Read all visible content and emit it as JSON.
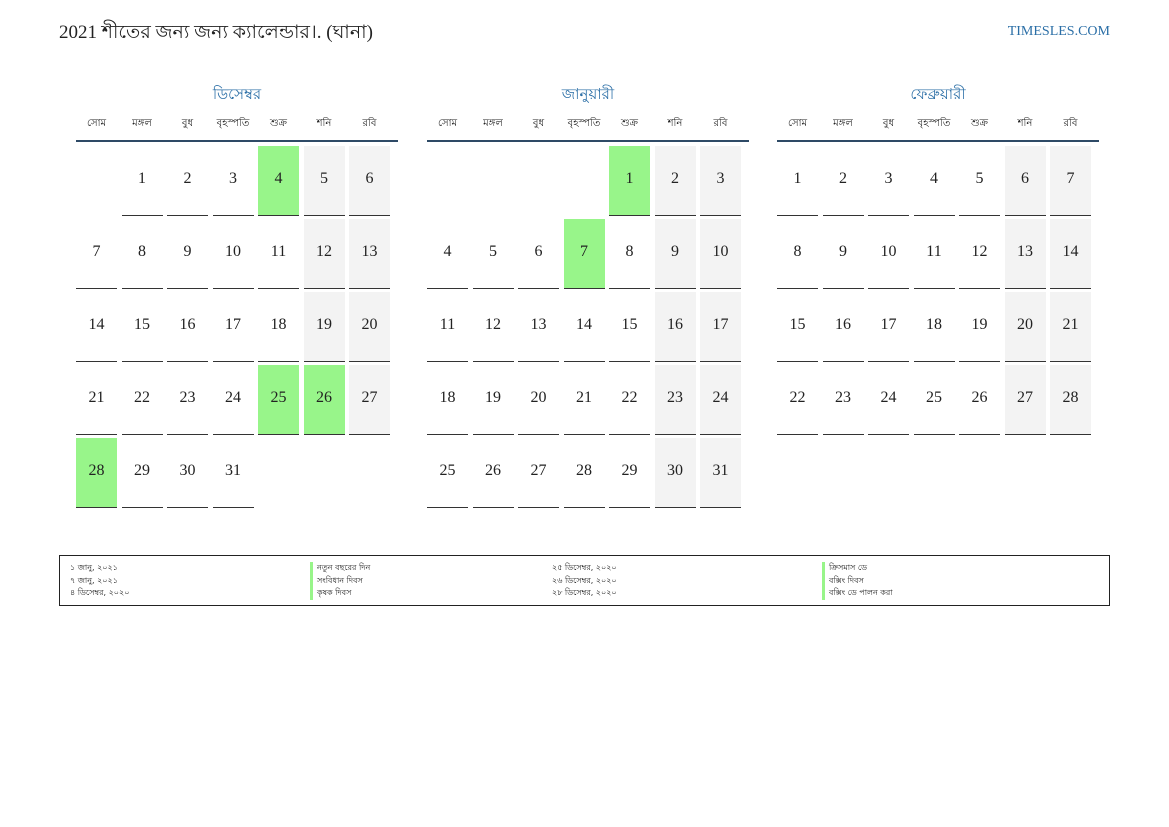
{
  "header": {
    "title": "2021 শীতের জন্য জন্য ক্যালেন্ডার।. (ঘানা)",
    "site": "TIMESLES.COM"
  },
  "colors": {
    "accent": "#2a6ea6",
    "holiday": "#98f58a",
    "weekend": "#f3f3f3",
    "rule": "#2e4a66"
  },
  "weekdays": [
    "সোম",
    "মঙ্গল",
    "বুধ",
    "বৃহস্পতি",
    "শুক্র",
    "শনি",
    "রবি"
  ],
  "months": [
    {
      "name": "ডিসেম্বর",
      "days": [
        "",
        "1",
        "2",
        "3",
        "4",
        "5",
        "6",
        "7",
        "8",
        "9",
        "10",
        "11",
        "12",
        "13",
        "14",
        "15",
        "16",
        "17",
        "18",
        "19",
        "20",
        "21",
        "22",
        "23",
        "24",
        "25",
        "26",
        "27",
        "28",
        "29",
        "30",
        "31",
        "",
        "",
        ""
      ],
      "holidays": [
        "4",
        "25",
        "26",
        "28"
      ]
    },
    {
      "name": "জানুয়ারী",
      "days": [
        "",
        "",
        "",
        "",
        "1",
        "2",
        "3",
        "4",
        "5",
        "6",
        "7",
        "8",
        "9",
        "10",
        "11",
        "12",
        "13",
        "14",
        "15",
        "16",
        "17",
        "18",
        "19",
        "20",
        "21",
        "22",
        "23",
        "24",
        "25",
        "26",
        "27",
        "28",
        "29",
        "30",
        "31"
      ],
      "holidays": [
        "1",
        "7"
      ]
    },
    {
      "name": "ফেব্রুয়ারী",
      "days": [
        "1",
        "2",
        "3",
        "4",
        "5",
        "6",
        "7",
        "8",
        "9",
        "10",
        "11",
        "12",
        "13",
        "14",
        "15",
        "16",
        "17",
        "18",
        "19",
        "20",
        "21",
        "22",
        "23",
        "24",
        "25",
        "26",
        "27",
        "28"
      ],
      "holidays": []
    }
  ],
  "legend": {
    "col1_dates": [
      "১ জানু, ২০২১",
      "৭ জানু, ২০২১",
      "৪ ডিসেম্বর, ২০২০"
    ],
    "col1_names": [
      "নতুন বছরের দিন",
      "সংবিধান দিবস",
      "কৃষক দিবস"
    ],
    "col2_dates": [
      "২৫ ডিসেম্বর, ২০২০",
      "২৬ ডিসেম্বর, ২০২০",
      "২৮ ডিসেম্বর, ২০২০"
    ],
    "col2_names": [
      "ক্রিসমাস ডে",
      "বক্সিং দিবস",
      "বক্সিং ডে পালন করা"
    ]
  }
}
